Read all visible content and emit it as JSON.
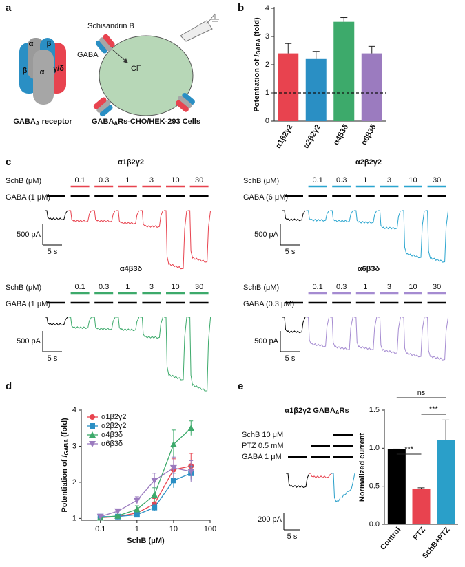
{
  "panel_labels": [
    "a",
    "b",
    "c",
    "d",
    "e"
  ],
  "diagram": {
    "subunits": [
      "α",
      "β",
      "α",
      "β",
      "γ/δ"
    ],
    "receptor_caption": {
      "main": "GABA",
      "sub": "A",
      "rest": " receptor"
    },
    "drug": "Schisandrin B",
    "agonist": "GABA",
    "ion": {
      "main": "Cl",
      "sup": "−"
    },
    "cell_caption": {
      "main": "GABA",
      "sub": "A",
      "rest": "Rs-CHO/HEK-293 Cells"
    }
  },
  "traces": [
    {
      "title": "α1β2γ2",
      "drug_label": "SchB (μM)",
      "concentrations": [
        "0.1",
        "0.3",
        "1",
        "3",
        "10",
        "30"
      ],
      "gaba_label": "GABA (1 μM)",
      "color": "#e8434f",
      "amplitudes": [
        200,
        250,
        250,
        300,
        380,
        1300,
        1150
      ],
      "scale_current": "500 pA",
      "scale_time": "5 s"
    },
    {
      "title": "α2β2γ2",
      "drug_label": "SchB (μM)",
      "concentrations": [
        "0.1",
        "0.3",
        "1",
        "3",
        "10",
        "30"
      ],
      "gaba_label": "GABA (6 μM)",
      "color": "#2aa5cf",
      "amplitudes": [
        220,
        230,
        250,
        280,
        420,
        1050,
        1150
      ],
      "scale_current": "500 pA",
      "scale_time": "5 s"
    },
    {
      "title": "α4β3δ",
      "drug_label": "SchB (μM)",
      "concentrations": [
        "0.1",
        "0.3",
        "1",
        "3",
        "10",
        "30"
      ],
      "gaba_label": "GABA (1 μM)",
      "color": "#3daa6b",
      "amplitudes": [
        170,
        250,
        280,
        300,
        480,
        1400,
        1650
      ],
      "scale_current": "500 pA",
      "scale_time": "5 s"
    },
    {
      "title": "α6β3δ",
      "drug_label": "SchB (μM)",
      "concentrations": [
        "0.1",
        "0.3",
        "1",
        "3",
        "10",
        "30"
      ],
      "gaba_label": "GABA (0.3 μM)",
      "color": "#a58bd1",
      "amplitudes": [
        350,
        650,
        720,
        720,
        800,
        880,
        950
      ],
      "scale_current": "500 pA",
      "scale_time": "5 s"
    }
  ],
  "ptz_experiment": {
    "title": {
      "main": "α1β2γ2 GABA",
      "sub": "A",
      "rest": "Rs"
    },
    "conditions": [
      "SchB 10 μM",
      "PTZ 0.5 mM",
      "GABA 1 μM"
    ],
    "colors": [
      "#000000",
      "#e8434f",
      "#2a9fc9"
    ],
    "amplitudes": [
      150,
      40,
      330
    ],
    "scale_current": "200 pA",
    "scale_time": "5 s"
  },
  "chart_data": [
    {
      "type": "bar",
      "ylabel": {
        "pre": "Potentiation of ",
        "var": "I",
        "sub": "GABA",
        "post": " (fold)"
      },
      "categories": [
        "α1β2γ2",
        "α2β2γ2",
        "α4β3δ",
        "α6β3δ"
      ],
      "values": [
        2.4,
        2.2,
        3.52,
        2.4
      ],
      "errors": [
        0.35,
        0.27,
        0.15,
        0.25
      ],
      "colors": [
        "#e8434f",
        "#2a8fc4",
        "#3daa6b",
        "#9b7bbf"
      ],
      "ylim": [
        0,
        4
      ],
      "yticks": [
        0,
        1,
        2,
        3,
        4
      ],
      "reference_line": 1
    },
    {
      "type": "line",
      "ylabel": {
        "pre": "Potentiation of ",
        "var": "I",
        "sub": "GABA",
        "post": " (fold)"
      },
      "xlabel": "SchB (μM)",
      "x": [
        0.1,
        0.3,
        1,
        3,
        10,
        30
      ],
      "xscale": "log",
      "xlim": [
        0.03,
        100
      ],
      "xticks": [
        0.1,
        1,
        10,
        100
      ],
      "ylim": [
        0.95,
        4
      ],
      "yticks": [
        1,
        2,
        3,
        4
      ],
      "legend": "upper left",
      "series": [
        {
          "name": "α1β2γ2",
          "color": "#e8434f",
          "marker": "circle",
          "values": [
            1.02,
            1.05,
            1.15,
            1.4,
            2.35,
            2.45
          ],
          "errors": [
            0.03,
            0.05,
            0.1,
            0.15,
            0.3,
            0.35
          ]
        },
        {
          "name": "α2β2γ2",
          "color": "#2a8fc4",
          "marker": "square",
          "values": [
            1.05,
            1.05,
            1.1,
            1.3,
            2.05,
            2.25
          ],
          "errors": [
            0.02,
            0.03,
            0.05,
            0.1,
            0.2,
            0.2
          ]
        },
        {
          "name": "α4β3δ",
          "color": "#3daa6b",
          "marker": "triangle",
          "values": [
            1.02,
            1.07,
            1.25,
            1.65,
            3.05,
            3.5
          ],
          "errors": [
            0.02,
            0.03,
            0.1,
            0.2,
            0.4,
            0.2
          ]
        },
        {
          "name": "α6β3δ",
          "color": "#9b7bbf",
          "marker": "triangle-down",
          "values": [
            1.05,
            1.2,
            1.5,
            2.05,
            2.4,
            2.3
          ],
          "errors": [
            0.02,
            0.05,
            0.1,
            0.2,
            0.3,
            0.3
          ]
        }
      ]
    },
    {
      "type": "bar",
      "ylabel": "Normalized current",
      "categories": [
        "Control",
        "PTZ",
        "SchB+PTZ"
      ],
      "values": [
        0.99,
        0.47,
        1.11
      ],
      "errors": [
        0,
        0.01,
        0.26
      ],
      "colors": [
        "#000000",
        "#e8434f",
        "#2a9fc9"
      ],
      "ylim": [
        0,
        1.5
      ],
      "yticks": [
        {
          "value": 0,
          "label": "0.0"
        },
        {
          "value": 0.5,
          "label": "0.5"
        },
        {
          "value": 1,
          "label": "1.0"
        },
        {
          "value": 1.5,
          "label": "1.5"
        }
      ],
      "annotations": [
        {
          "text": "ns",
          "from": 0,
          "to": 2
        },
        {
          "text": "***",
          "from": 1,
          "to": 2
        },
        {
          "text": "***",
          "from": 0,
          "to": 1
        }
      ]
    }
  ]
}
